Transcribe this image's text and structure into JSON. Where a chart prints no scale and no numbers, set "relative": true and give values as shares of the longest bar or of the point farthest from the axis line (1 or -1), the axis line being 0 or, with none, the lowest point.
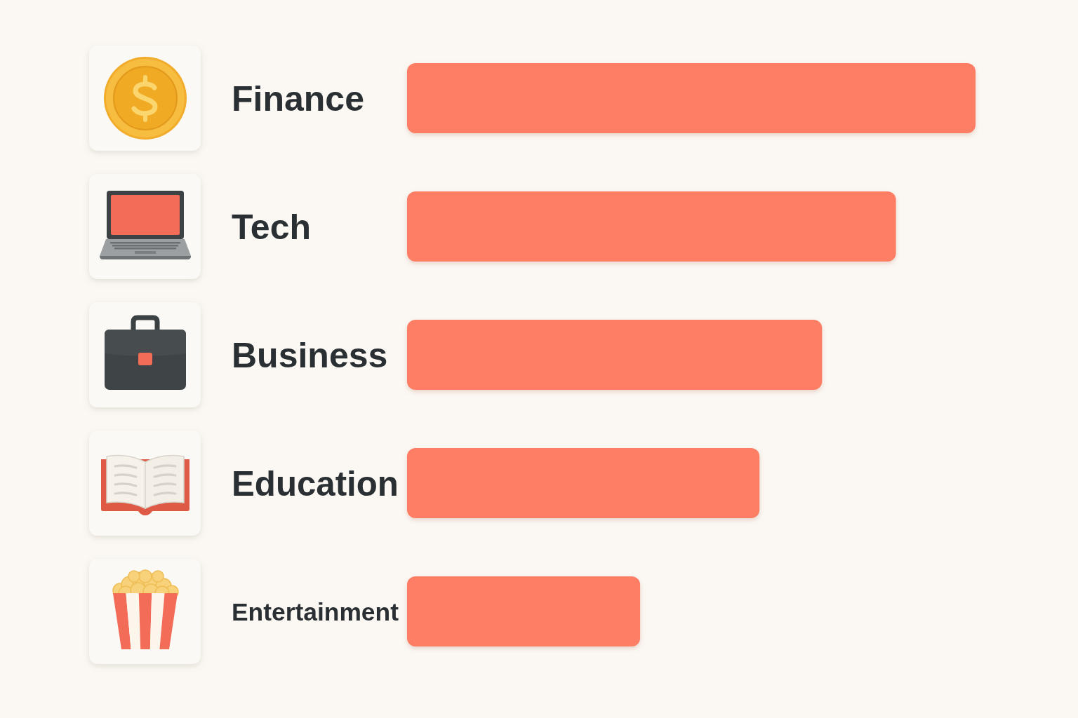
{
  "chart_data": {
    "type": "bar",
    "orientation": "horizontal",
    "relative": true,
    "categories": [
      "Finance",
      "Tech",
      "Business",
      "Education",
      "Entertainment"
    ],
    "values": [
      1,
      0.86,
      0.73,
      0.62,
      0.41
    ],
    "color": "#fd7e65"
  }
}
